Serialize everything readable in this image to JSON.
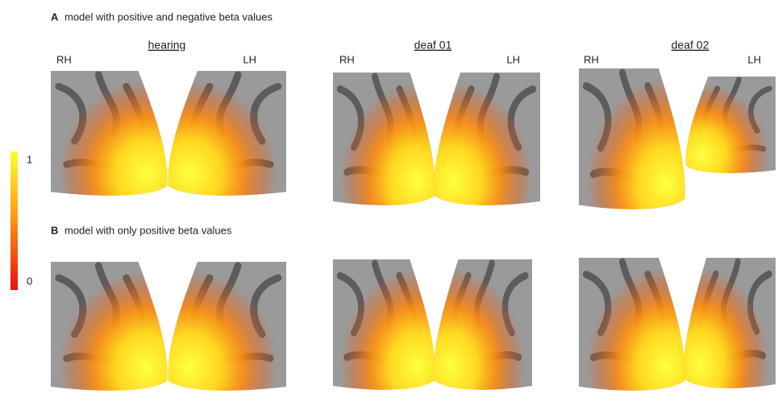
{
  "panel_a": {
    "label": "A",
    "title": "model with positive and negative beta values",
    "columns": [
      {
        "name": "hearing",
        "left": "RH",
        "right": "LH"
      },
      {
        "name": "deaf 01",
        "left": "RH",
        "right": "LH"
      },
      {
        "name": "deaf 02",
        "left": "RH",
        "right": "LH"
      }
    ]
  },
  "panel_b": {
    "label": "B",
    "title": "model with only positive beta values"
  },
  "colorbar": {
    "ticks": [
      1,
      0
    ]
  }
}
